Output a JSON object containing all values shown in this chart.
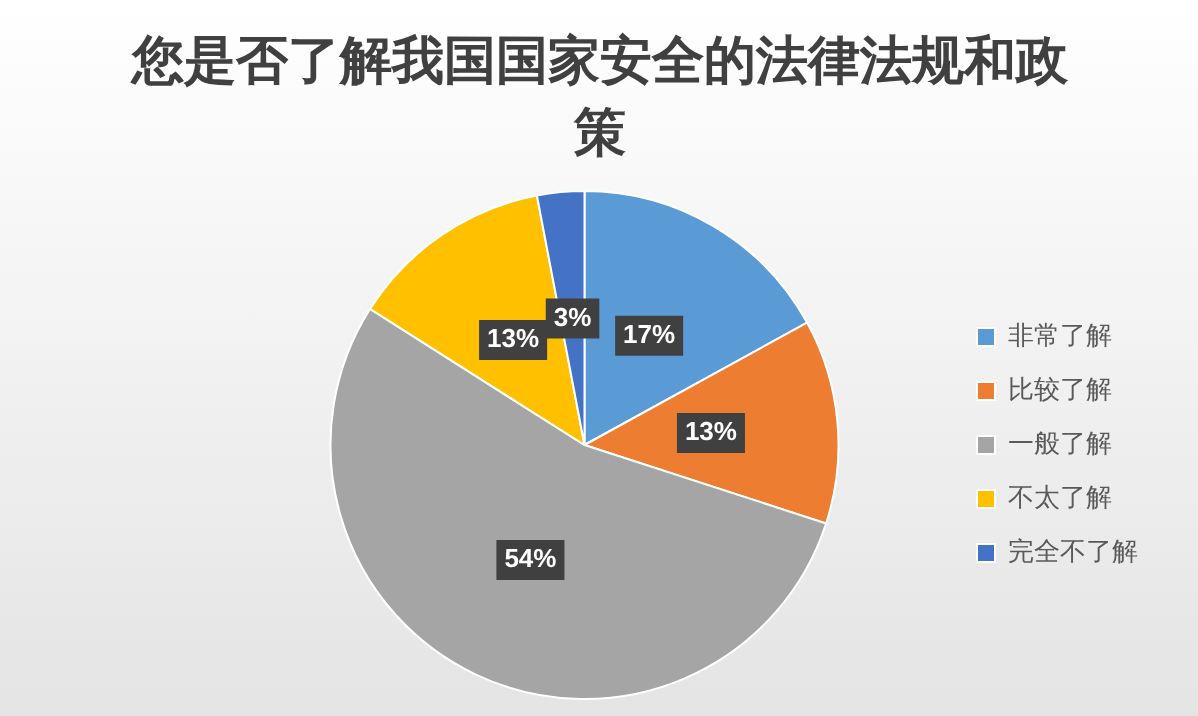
{
  "chart_data": {
    "type": "pie",
    "title": "您是否了解我国国家安全的法律法规和政策",
    "categories": [
      "非常了解",
      "比较了解",
      "一般了解",
      "不太了解",
      "完全不了解"
    ],
    "values": [
      17,
      13,
      54,
      13,
      3
    ],
    "colors": [
      "#5b9bd5",
      "#ed7d31",
      "#a5a5a5",
      "#ffc000",
      "#4472c4"
    ],
    "value_labels": [
      "17%",
      "13%",
      "54%",
      "13%",
      "3%"
    ],
    "legend": "right"
  }
}
